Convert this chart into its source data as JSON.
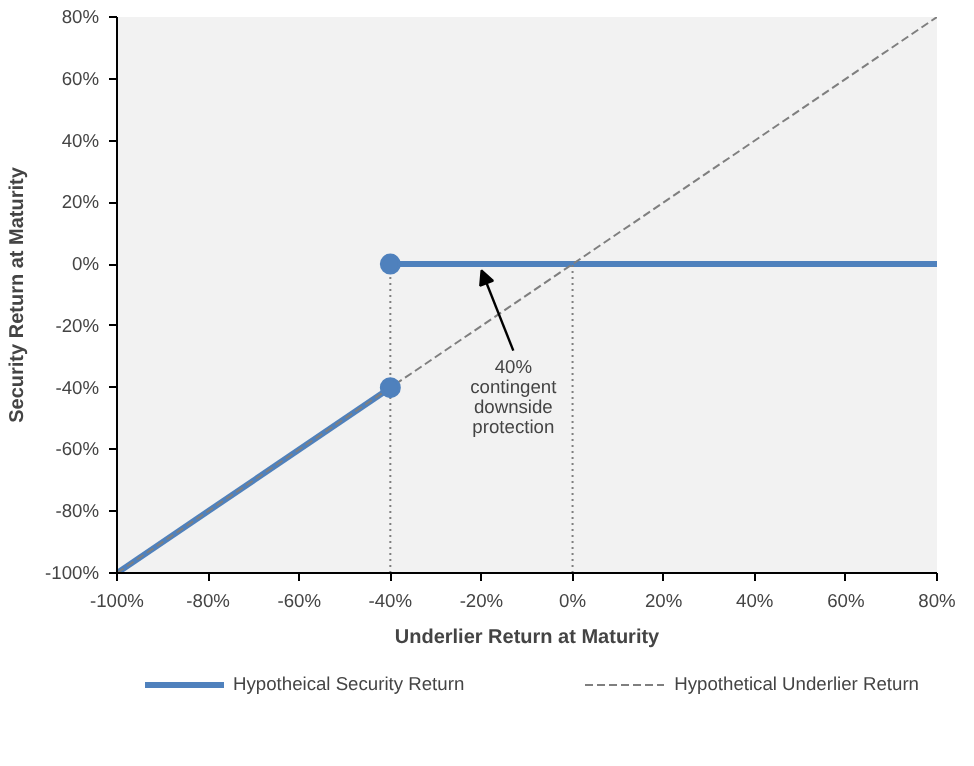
{
  "chart_data": {
    "type": "line",
    "xlabel": "Underlier Return at Maturity",
    "ylabel": "Security Return at Maturity",
    "xlim": [
      -100,
      80
    ],
    "ylim": [
      -100,
      80
    ],
    "xticks": [
      {
        "value": -100,
        "label": "-100%"
      },
      {
        "value": -80,
        "label": "-80%"
      },
      {
        "value": -60,
        "label": "-60%"
      },
      {
        "value": -40,
        "label": "-40%"
      },
      {
        "value": -20,
        "label": "-20%"
      },
      {
        "value": 0,
        "label": "0%"
      },
      {
        "value": 20,
        "label": "20%"
      },
      {
        "value": 40,
        "label": "40%"
      },
      {
        "value": 60,
        "label": "60%"
      },
      {
        "value": 80,
        "label": "80%"
      }
    ],
    "yticks": [
      {
        "value": -100,
        "label": "-100%"
      },
      {
        "value": -80,
        "label": "-80%"
      },
      {
        "value": -60,
        "label": "-60%"
      },
      {
        "value": -40,
        "label": "-40%"
      },
      {
        "value": -20,
        "label": "-20%"
      },
      {
        "value": 0,
        "label": "0%"
      },
      {
        "value": 20,
        "label": "20%"
      },
      {
        "value": 40,
        "label": "40%"
      },
      {
        "value": 60,
        "label": "60%"
      },
      {
        "value": 80,
        "label": "80%"
      }
    ],
    "grid": false,
    "legend": "bottom",
    "marker": "none",
    "series": [
      {
        "name": "Hypotheical Security Return",
        "color": "#4f81bd",
        "line_style": "solid",
        "x": [
          -100,
          -40
        ],
        "values": [
          -100,
          -40
        ]
      },
      {
        "color": "#4f81bd",
        "line_style": "solid",
        "x": [
          -40,
          80
        ],
        "values": [
          0,
          0
        ]
      },
      {
        "name": "Hypothetical Underlier Return",
        "color": "#7f7f7f",
        "line_style": "dashed",
        "x": [
          -100,
          80
        ],
        "values": [
          -100,
          80
        ]
      },
      {
        "color": "#7f7f7f",
        "line_style": "dotted",
        "x": [
          -40,
          -40
        ],
        "values": [
          -100,
          0
        ]
      },
      {
        "color": "#7f7f7f",
        "line_style": "dotted",
        "x": [
          0,
          0
        ],
        "values": [
          -100,
          0
        ]
      },
      {
        "type": "scatter",
        "marker": "circle",
        "color": "#4f81bd",
        "x": [
          -40
        ],
        "values": [
          0
        ]
      },
      {
        "type": "scatter",
        "marker": "circle",
        "color": "#4f81bd",
        "x": [
          -40
        ],
        "values": [
          -40
        ]
      }
    ],
    "annotations": [
      {
        "text": "40%\ncontingent\ndownside\nprotection",
        "x": -20,
        "y": 0
      }
    ]
  }
}
